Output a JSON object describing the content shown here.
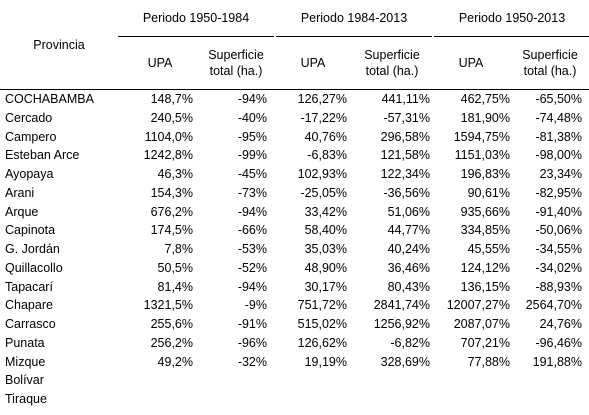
{
  "header": {
    "provincia": "Provincia",
    "periods": [
      "Periodo 1950-1984",
      "Periodo 1984-2013",
      "Periodo 1950-2013"
    ],
    "upa": "UPA",
    "sup_line1": "Superficie",
    "sup_line2": "total (ha.)"
  },
  "rows": [
    {
      "name": "COCHABAMBA",
      "v": [
        "148,7%",
        "-94%",
        "126,27%",
        "441,11%",
        "462,75%",
        "-65,50%"
      ]
    },
    {
      "name": "Cercado",
      "v": [
        "240,5%",
        "-40%",
        "-17,22%",
        "-57,31%",
        "181,90%",
        "-74,48%"
      ]
    },
    {
      "name": "Campero",
      "v": [
        "1104,0%",
        "-95%",
        "40,76%",
        "296,58%",
        "1594,75%",
        "-81,38%"
      ]
    },
    {
      "name": "Esteban Arce",
      "v": [
        "1242,8%",
        "-99%",
        "-6,83%",
        "121,58%",
        "1151,03%",
        "-98,00%"
      ]
    },
    {
      "name": "Ayopaya",
      "v": [
        "46,3%",
        "-45%",
        "102,93%",
        "122,34%",
        "196,83%",
        "23,34%"
      ]
    },
    {
      "name": "Arani",
      "v": [
        "154,3%",
        "-73%",
        "-25,05%",
        "-36,56%",
        "90,61%",
        "-82,95%"
      ]
    },
    {
      "name": "Arque",
      "v": [
        "676,2%",
        "-94%",
        "33,42%",
        "51,06%",
        "935,66%",
        "-91,40%"
      ]
    },
    {
      "name": "Capinota",
      "v": [
        "174,5%",
        "-66%",
        "58,40%",
        "44,77%",
        "334,85%",
        "-50,06%"
      ]
    },
    {
      "name": "G. Jordán",
      "v": [
        "7,8%",
        "-53%",
        "35,03%",
        "40,24%",
        "45,55%",
        "-34,55%"
      ]
    },
    {
      "name": "Quillacollo",
      "v": [
        "50,5%",
        "-52%",
        "48,90%",
        "36,46%",
        "124,12%",
        "-34,02%"
      ]
    },
    {
      "name": "Tapacarí",
      "v": [
        "81,4%",
        "-94%",
        "30,17%",
        "80,43%",
        "136,15%",
        "-88,93%"
      ]
    },
    {
      "name": "Chapare",
      "v": [
        "1321,5%",
        "-9%",
        "751,72%",
        "2841,74%",
        "12007,27%",
        "2564,70%"
      ]
    },
    {
      "name": "Carrasco",
      "v": [
        "255,6%",
        "-91%",
        "515,02%",
        "1256,92%",
        "2087,07%",
        "24,76%"
      ]
    },
    {
      "name": "Punata",
      "v": [
        "256,2%",
        "-96%",
        "126,62%",
        "-6,82%",
        "707,21%",
        "-96,46%"
      ]
    },
    {
      "name": "Mizque",
      "v": [
        "49,2%",
        "-32%",
        "19,19%",
        "328,69%",
        "77,88%",
        "191,88%"
      ]
    },
    {
      "name": "Bolívar",
      "v": [
        "",
        "",
        "",
        "",
        "",
        ""
      ]
    },
    {
      "name": "Tiraque",
      "v": [
        "",
        "",
        "",
        "",
        "",
        ""
      ]
    }
  ]
}
